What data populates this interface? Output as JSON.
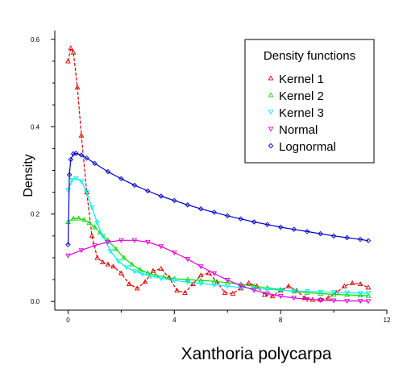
{
  "chart_data": {
    "type": "line",
    "xlabel": "Xanthoria polycarpa",
    "ylabel": "Density",
    "xlim": [
      -0.5,
      12
    ],
    "ylim": [
      -0.02,
      0.62
    ],
    "xticks": [
      0,
      4,
      8,
      12
    ],
    "yticks": [
      0.0,
      0.2,
      0.4,
      0.6
    ],
    "x_tick_labels": [
      "0",
      "4",
      "8",
      "12"
    ],
    "y_tick_labels": [
      "0.0",
      "0.2",
      "0.4",
      "0.6"
    ],
    "grid": false,
    "legend": {
      "title": "Density functions",
      "placement": "top-right"
    },
    "series": [
      {
        "name": "Kernel 1",
        "color": "#dd0000",
        "marker": "triangle-up",
        "x": [
          0.0,
          0.1,
          0.2,
          0.35,
          0.5,
          0.7,
          0.9,
          1.1,
          1.3,
          1.5,
          1.7,
          2.0,
          2.3,
          2.6,
          2.9,
          3.2,
          3.5,
          3.8,
          4.1,
          4.4,
          4.7,
          5.0,
          5.3,
          5.6,
          5.9,
          6.2,
          6.5,
          6.8,
          7.1,
          7.4,
          7.7,
          8.0,
          8.3,
          8.6,
          8.9,
          9.2,
          9.5,
          9.8,
          10.1,
          10.4,
          10.7,
          11.0,
          11.3
        ],
        "y": [
          0.55,
          0.58,
          0.57,
          0.49,
          0.38,
          0.25,
          0.15,
          0.1,
          0.09,
          0.085,
          0.08,
          0.065,
          0.04,
          0.03,
          0.045,
          0.07,
          0.075,
          0.055,
          0.025,
          0.02,
          0.04,
          0.06,
          0.065,
          0.045,
          0.02,
          0.018,
          0.03,
          0.042,
          0.035,
          0.015,
          0.012,
          0.025,
          0.035,
          0.025,
          0.008,
          0.004,
          0.004,
          0.008,
          0.02,
          0.035,
          0.042,
          0.04,
          0.032
        ]
      },
      {
        "name": "Kernel 2",
        "color": "#00dd00",
        "marker": "triangle-up",
        "x": [
          0.0,
          0.2,
          0.4,
          0.6,
          0.8,
          1.0,
          1.2,
          1.5,
          1.8,
          2.1,
          2.4,
          2.7,
          3.0,
          3.3,
          3.6,
          4.0,
          4.5,
          5.0,
          5.5,
          6.0,
          6.5,
          7.0,
          7.5,
          8.0,
          8.5,
          9.0,
          9.5,
          10.0,
          10.5,
          11.0,
          11.3
        ],
        "y": [
          0.182,
          0.19,
          0.19,
          0.187,
          0.18,
          0.17,
          0.158,
          0.14,
          0.12,
          0.1,
          0.085,
          0.073,
          0.065,
          0.06,
          0.056,
          0.052,
          0.05,
          0.048,
          0.046,
          0.043,
          0.039,
          0.035,
          0.031,
          0.027,
          0.023,
          0.02,
          0.018,
          0.016,
          0.015,
          0.014,
          0.013
        ]
      },
      {
        "name": "Kernel 3",
        "color": "#00eeee",
        "marker": "triangle-down",
        "x": [
          0.0,
          0.15,
          0.3,
          0.5,
          0.7,
          0.9,
          1.1,
          1.3,
          1.6,
          1.9,
          2.2,
          2.5,
          2.8,
          3.1,
          3.5,
          4.0,
          4.5,
          5.0,
          5.5,
          6.0,
          6.5,
          7.0,
          7.5,
          8.0,
          8.5,
          9.0,
          9.5,
          10.0,
          10.5,
          11.0,
          11.3
        ],
        "y": [
          0.255,
          0.278,
          0.282,
          0.275,
          0.25,
          0.215,
          0.18,
          0.15,
          0.115,
          0.092,
          0.078,
          0.069,
          0.063,
          0.058,
          0.053,
          0.048,
          0.044,
          0.041,
          0.038,
          0.035,
          0.032,
          0.03,
          0.028,
          0.026,
          0.024,
          0.023,
          0.022,
          0.021,
          0.02,
          0.019,
          0.019
        ]
      },
      {
        "name": "Normal",
        "color": "#dd00dd",
        "marker": "triangle-down",
        "x": [
          0.0,
          0.5,
          1.0,
          1.5,
          2.0,
          2.5,
          3.0,
          3.5,
          4.0,
          4.5,
          5.0,
          5.5,
          6.0,
          6.5,
          7.0,
          7.5,
          8.0,
          8.5,
          9.0,
          9.5,
          10.0,
          10.5,
          11.0,
          11.3
        ],
        "y": [
          0.105,
          0.117,
          0.128,
          0.136,
          0.14,
          0.14,
          0.136,
          0.126,
          0.112,
          0.097,
          0.08,
          0.064,
          0.049,
          0.036,
          0.026,
          0.018,
          0.012,
          0.008,
          0.005,
          0.003,
          0.002,
          0.001,
          0.001,
          0.0005
        ]
      },
      {
        "name": "Lognormal",
        "color": "#0000cc",
        "marker": "diamond",
        "x": [
          0.0,
          0.05,
          0.1,
          0.2,
          0.3,
          0.5,
          0.7,
          1.0,
          1.5,
          2.0,
          2.5,
          3.0,
          3.5,
          4.0,
          4.5,
          5.0,
          5.5,
          6.0,
          6.5,
          7.0,
          7.5,
          8.0,
          8.5,
          9.0,
          9.5,
          10.0,
          10.5,
          11.0,
          11.3
        ],
        "y": [
          0.13,
          0.29,
          0.325,
          0.338,
          0.339,
          0.335,
          0.328,
          0.316,
          0.297,
          0.281,
          0.266,
          0.253,
          0.241,
          0.231,
          0.221,
          0.212,
          0.204,
          0.196,
          0.189,
          0.182,
          0.176,
          0.17,
          0.165,
          0.16,
          0.155,
          0.15,
          0.146,
          0.142,
          0.139
        ]
      }
    ]
  }
}
